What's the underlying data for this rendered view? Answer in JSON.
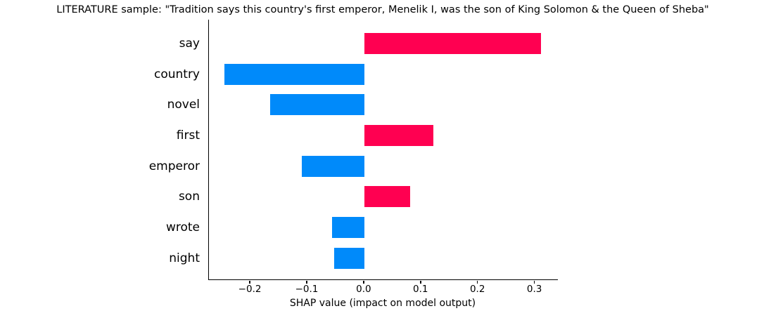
{
  "chart_data": {
    "type": "bar",
    "orientation": "horizontal",
    "title": "LITERATURE sample: \"Tradition says this country's first emperor, Menelik I, was the son of King Solomon & the Queen of Sheba\"",
    "xlabel": "SHAP value (impact on model output)",
    "ylabel": "",
    "categories": [
      "say",
      "country",
      "novel",
      "first",
      "emperor",
      "son",
      "wrote",
      "night"
    ],
    "values": [
      0.31,
      -0.246,
      -0.165,
      0.121,
      -0.11,
      0.08,
      -0.057,
      -0.053
    ],
    "xlim": [
      -0.273,
      0.34
    ],
    "xticks": {
      "values": [
        -0.2,
        -0.1,
        0.0,
        0.1,
        0.2,
        0.3
      ],
      "labels": [
        "−0.2",
        "−0.1",
        "0.0",
        "0.1",
        "0.2",
        "0.3"
      ]
    },
    "grid": false,
    "legend": "none",
    "colors": {
      "positive_bar": "#ff0051",
      "negative_bar": "#008afa",
      "axis": "#000000",
      "text": "#000000",
      "background": "#ffffff"
    }
  }
}
